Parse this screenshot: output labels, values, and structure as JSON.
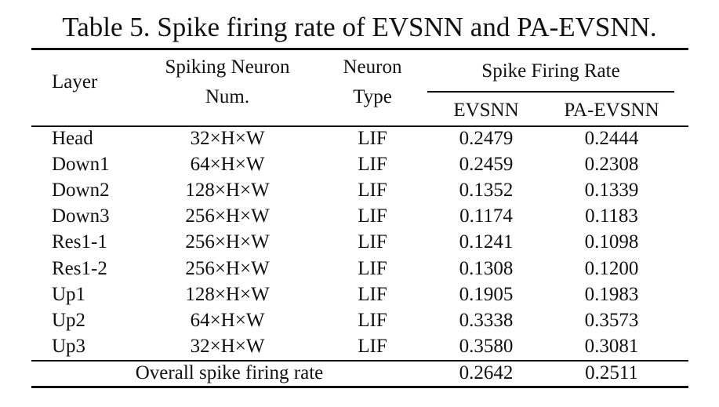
{
  "caption": "Table 5. Spike firing rate of EVSNN and PA-EVSNN.",
  "headers": {
    "layer": "Layer",
    "neuron_num_line1": "Spiking Neuron",
    "neuron_num_line2": "Num.",
    "neuron_type_line1": "Neuron",
    "neuron_type_line2": "Type",
    "rate_group": "Spike Firing Rate",
    "evsnn": "EVSNN",
    "pa_evsnn": "PA-EVSNN"
  },
  "rows": [
    {
      "layer": "Head",
      "num": "32×H×W",
      "type": "LIF",
      "evsnn": "0.2479",
      "pa": "0.2444"
    },
    {
      "layer": "Down1",
      "num": "64×H×W",
      "type": "LIF",
      "evsnn": "0.2459",
      "pa": "0.2308"
    },
    {
      "layer": "Down2",
      "num": "128×H×W",
      "type": "LIF",
      "evsnn": "0.1352",
      "pa": "0.1339"
    },
    {
      "layer": "Down3",
      "num": "256×H×W",
      "type": "LIF",
      "evsnn": "0.1174",
      "pa": "0.1183"
    },
    {
      "layer": "Res1-1",
      "num": "256×H×W",
      "type": "LIF",
      "evsnn": "0.1241",
      "pa": "0.1098"
    },
    {
      "layer": "Res1-2",
      "num": "256×H×W",
      "type": "LIF",
      "evsnn": "0.1308",
      "pa": "0.1200"
    },
    {
      "layer": "Up1",
      "num": "128×H×W",
      "type": "LIF",
      "evsnn": "0.1905",
      "pa": "0.1983"
    },
    {
      "layer": "Up2",
      "num": "64×H×W",
      "type": "LIF",
      "evsnn": "0.3338",
      "pa": "0.3573"
    },
    {
      "layer": "Up3",
      "num": "32×H×W",
      "type": "LIF",
      "evsnn": "0.3580",
      "pa": "0.3081"
    }
  ],
  "overall": {
    "label": "Overall spike firing rate",
    "evsnn": "0.2642",
    "pa": "0.2511"
  }
}
